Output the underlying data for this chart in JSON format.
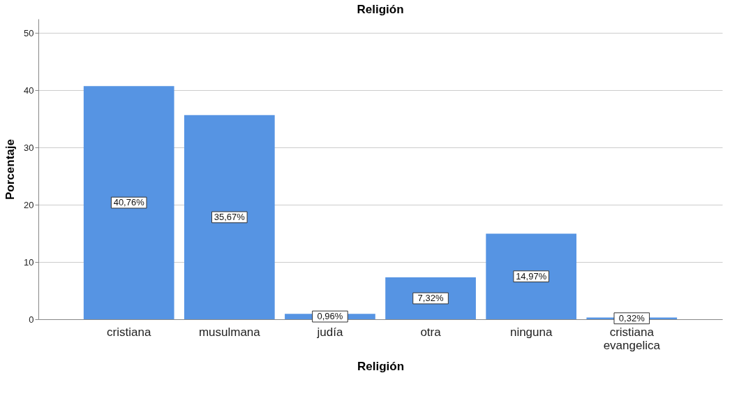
{
  "chart_data": {
    "type": "bar",
    "title": "Religión",
    "xlabel": "Religión",
    "ylabel": "Porcentaje",
    "categories": [
      "cristiana",
      "musulmana",
      "judía",
      "otra",
      "ninguna",
      "cristiana evangelica"
    ],
    "values": [
      40.76,
      35.67,
      0.96,
      7.32,
      14.97,
      0.32
    ],
    "value_labels": [
      "40,76%",
      "35,67%",
      "0,96%",
      "7,32%",
      "14,97%",
      "0,32%"
    ],
    "color": "#5694e3",
    "ylim": [
      0,
      52.5
    ],
    "yticks": [
      0,
      10,
      20,
      30,
      40,
      50
    ],
    "grid": "y"
  }
}
